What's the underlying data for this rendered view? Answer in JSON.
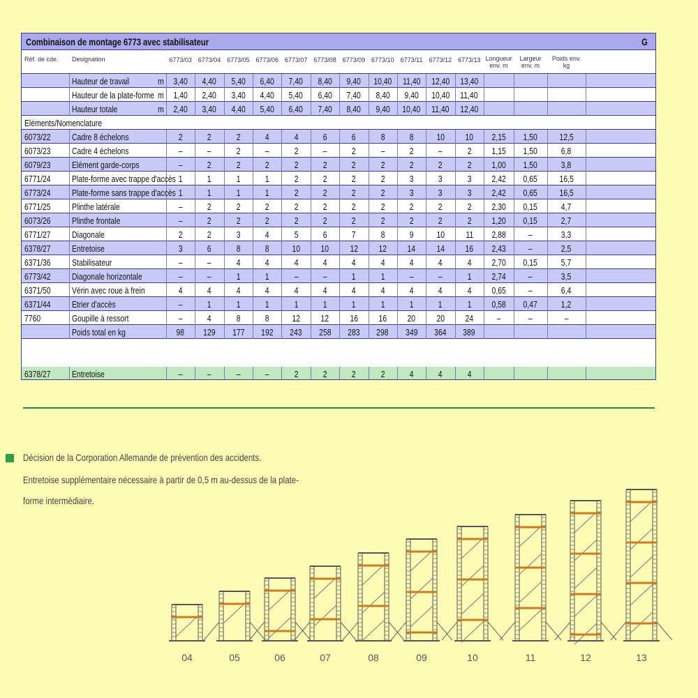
{
  "title": "Combinaison de montage 6773 avec stabilisateur",
  "section_letter": "G",
  "table": {
    "header": {
      "ref": "Réf. de cde.",
      "designation": "Designation",
      "models": [
        "6773/03",
        "6773/04",
        "6773/05",
        "6773/06",
        "6773/07",
        "6773/08",
        "6773/09",
        "6773/10",
        "6773/11",
        "6773/12",
        "6773/13"
      ],
      "length": "Longueur env. m",
      "width": "Largeur env. m",
      "weight": "Poids env. kg"
    },
    "rows": [
      {
        "designation": "Hauteur de travail",
        "unit": "m",
        "values": [
          "3,40",
          "4,40",
          "5,40",
          "6,40",
          "7,40",
          "8,40",
          "9,40",
          "10,40",
          "11,40",
          "12,40",
          "13,40"
        ]
      },
      {
        "designation": "Hauteur de la plate-forme",
        "unit": "m",
        "values": [
          "1,40",
          "2,40",
          "3,40",
          "4,40",
          "5,40",
          "6,40",
          "7,40",
          "8,40",
          "9,40",
          "10,40",
          "11,40"
        ]
      },
      {
        "designation": "Hauteur totale",
        "unit": "m",
        "values": [
          "2,40",
          "3,40",
          "4,40",
          "5,40",
          "6,40",
          "7,40",
          "8,40",
          "9,40",
          "10,40",
          "11,40",
          "12,40"
        ]
      },
      {
        "section": "Eléments/Nomenclature"
      },
      {
        "ref": "6073/22",
        "designation": "Cadre 8 échelons",
        "values": [
          "2",
          "2",
          "2",
          "4",
          "4",
          "6",
          "6",
          "8",
          "8",
          "10",
          "10"
        ],
        "length": "2,15",
        "width": "1,50",
        "weight": "12,5"
      },
      {
        "ref": "6073/23",
        "designation": "Cadre 4 échelons",
        "values": [
          "–",
          "–",
          "2",
          "–",
          "2",
          "–",
          "2",
          "–",
          "2",
          "–",
          "2"
        ],
        "length": "1,15",
        "width": "1,50",
        "weight": "6,8"
      },
      {
        "ref": "6079/23",
        "designation": "Elément garde-corps",
        "values": [
          "–",
          "2",
          "2",
          "2",
          "2",
          "2",
          "2",
          "2",
          "2",
          "2",
          "2"
        ],
        "length": "1,00",
        "width": "1,50",
        "weight": "3,8"
      },
      {
        "ref": "6771/24",
        "designation": "Plate-forme avec trappe d'accès",
        "values": [
          "1",
          "1",
          "1",
          "1",
          "2",
          "2",
          "2",
          "2",
          "3",
          "3",
          "3"
        ],
        "length": "2,42",
        "width": "0,65",
        "weight": "16,5"
      },
      {
        "ref": "6773/24",
        "designation": "Plate-forme sans trappe d'accès",
        "values": [
          "1",
          "1",
          "1",
          "1",
          "2",
          "2",
          "2",
          "2",
          "3",
          "3",
          "3"
        ],
        "length": "2,42",
        "width": "0,65",
        "weight": "16,5"
      },
      {
        "ref": "6771/25",
        "designation": "Plinthe latérale",
        "values": [
          "–",
          "2",
          "2",
          "2",
          "2",
          "2",
          "2",
          "2",
          "2",
          "2",
          "2"
        ],
        "length": "2,30",
        "width": "0,15",
        "weight": "4,7"
      },
      {
        "ref": "6073/26",
        "designation": "Plinthe frontale",
        "values": [
          "–",
          "2",
          "2",
          "2",
          "2",
          "2",
          "2",
          "2",
          "2",
          "2",
          "2"
        ],
        "length": "1,20",
        "width": "0,15",
        "weight": "2,7"
      },
      {
        "ref": "6771/27",
        "designation": "Diagonale",
        "values": [
          "2",
          "2",
          "3",
          "4",
          "5",
          "6",
          "7",
          "8",
          "9",
          "10",
          "11"
        ],
        "length": "2,88",
        "width": "–",
        "weight": "3,3"
      },
      {
        "ref": "6378/27",
        "designation": "Entretoise",
        "values": [
          "3",
          "6",
          "8",
          "8",
          "10",
          "10",
          "12",
          "12",
          "14",
          "14",
          "16"
        ],
        "length": "2,43",
        "width": "–",
        "weight": "2,5"
      },
      {
        "ref": "6371/36",
        "designation": "Stabilisateur",
        "values": [
          "–",
          "–",
          "4",
          "4",
          "4",
          "4",
          "4",
          "4",
          "4",
          "4",
          "4"
        ],
        "length": "2,70",
        "width": "0,15",
        "weight": "5,7"
      },
      {
        "ref": "6773/42",
        "designation": "Diagonale horizontale",
        "values": [
          "–",
          "–",
          "1",
          "1",
          "–",
          "–",
          "1",
          "1",
          "–",
          "–",
          "1"
        ],
        "length": "2,74",
        "width": "–",
        "weight": "3,5"
      },
      {
        "ref": "6371/50",
        "designation": "Vérin avec roue à frein",
        "values": [
          "4",
          "4",
          "4",
          "4",
          "4",
          "4",
          "4",
          "4",
          "4",
          "4",
          "4"
        ],
        "length": "0,65",
        "width": "–",
        "weight": "6,4"
      },
      {
        "ref": "6371/44",
        "designation": "Etrier d'accès",
        "values": [
          "–",
          "1",
          "1",
          "1",
          "1",
          "1",
          "1",
          "1",
          "1",
          "1",
          "1"
        ],
        "length": "0,58",
        "width": "0,47",
        "weight": "1,2"
      },
      {
        "ref": "7760",
        "designation": "Goupille à ressort",
        "values": [
          "–",
          "4",
          "8",
          "8",
          "12",
          "12",
          "16",
          "16",
          "20",
          "20",
          "24"
        ],
        "length": "–",
        "width": "–",
        "weight": "–"
      },
      {
        "designation": "Poids total en kg",
        "values": [
          "98",
          "129",
          "177",
          "192",
          "243",
          "258",
          "283",
          "298",
          "349",
          "364",
          "389"
        ]
      }
    ],
    "extra_row": {
      "ref": "6378/27",
      "designation": "Entretoise",
      "values": [
        "–",
        "–",
        "–",
        "–",
        "2",
        "2",
        "2",
        "2",
        "4",
        "4",
        "4"
      ]
    }
  },
  "notes": [
    "Décision de la Corporation Allemande de prévention des accidents.",
    "Entretoise supplémentaire nécessaire à partir de 0,5 m au-dessus de la plate-",
    "forme intermédiaire."
  ],
  "illustration": {
    "labels": [
      "04",
      "05",
      "06",
      "07",
      "08",
      "09",
      "10",
      "11",
      "12",
      "13"
    ]
  }
}
